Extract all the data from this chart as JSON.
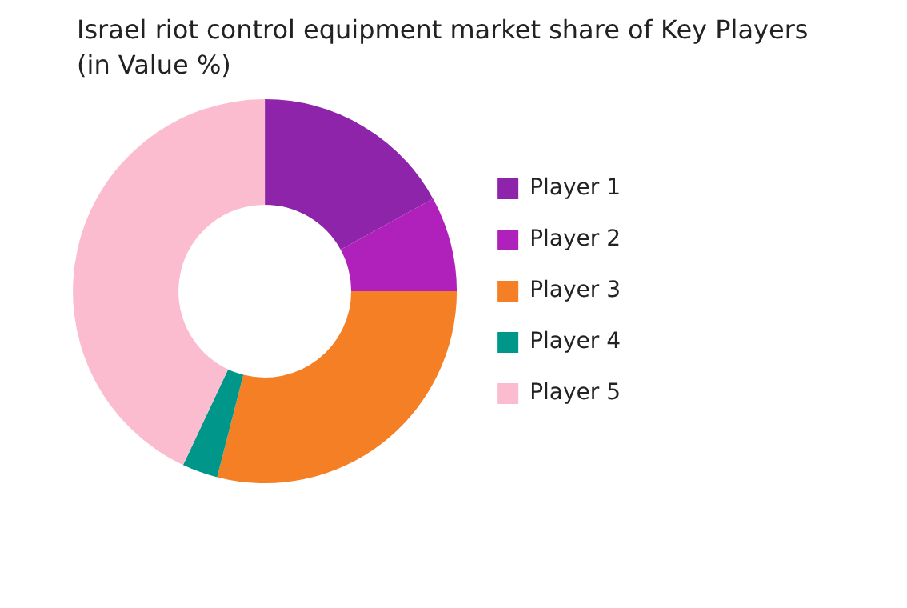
{
  "chart_data": {
    "type": "donut",
    "title": "Israel riot control equipment market  share of Key Players",
    "subtitle": "(in Value %)",
    "categories": [
      "Player 1",
      "Player 2",
      "Player 3",
      "Player 4",
      "Player 5"
    ],
    "values": [
      17,
      8,
      29,
      3,
      43
    ],
    "colors": [
      "#8e24aa",
      "#b020bb",
      "#f47f25",
      "#00968a",
      "#fbbcd0"
    ],
    "legend": "right"
  }
}
